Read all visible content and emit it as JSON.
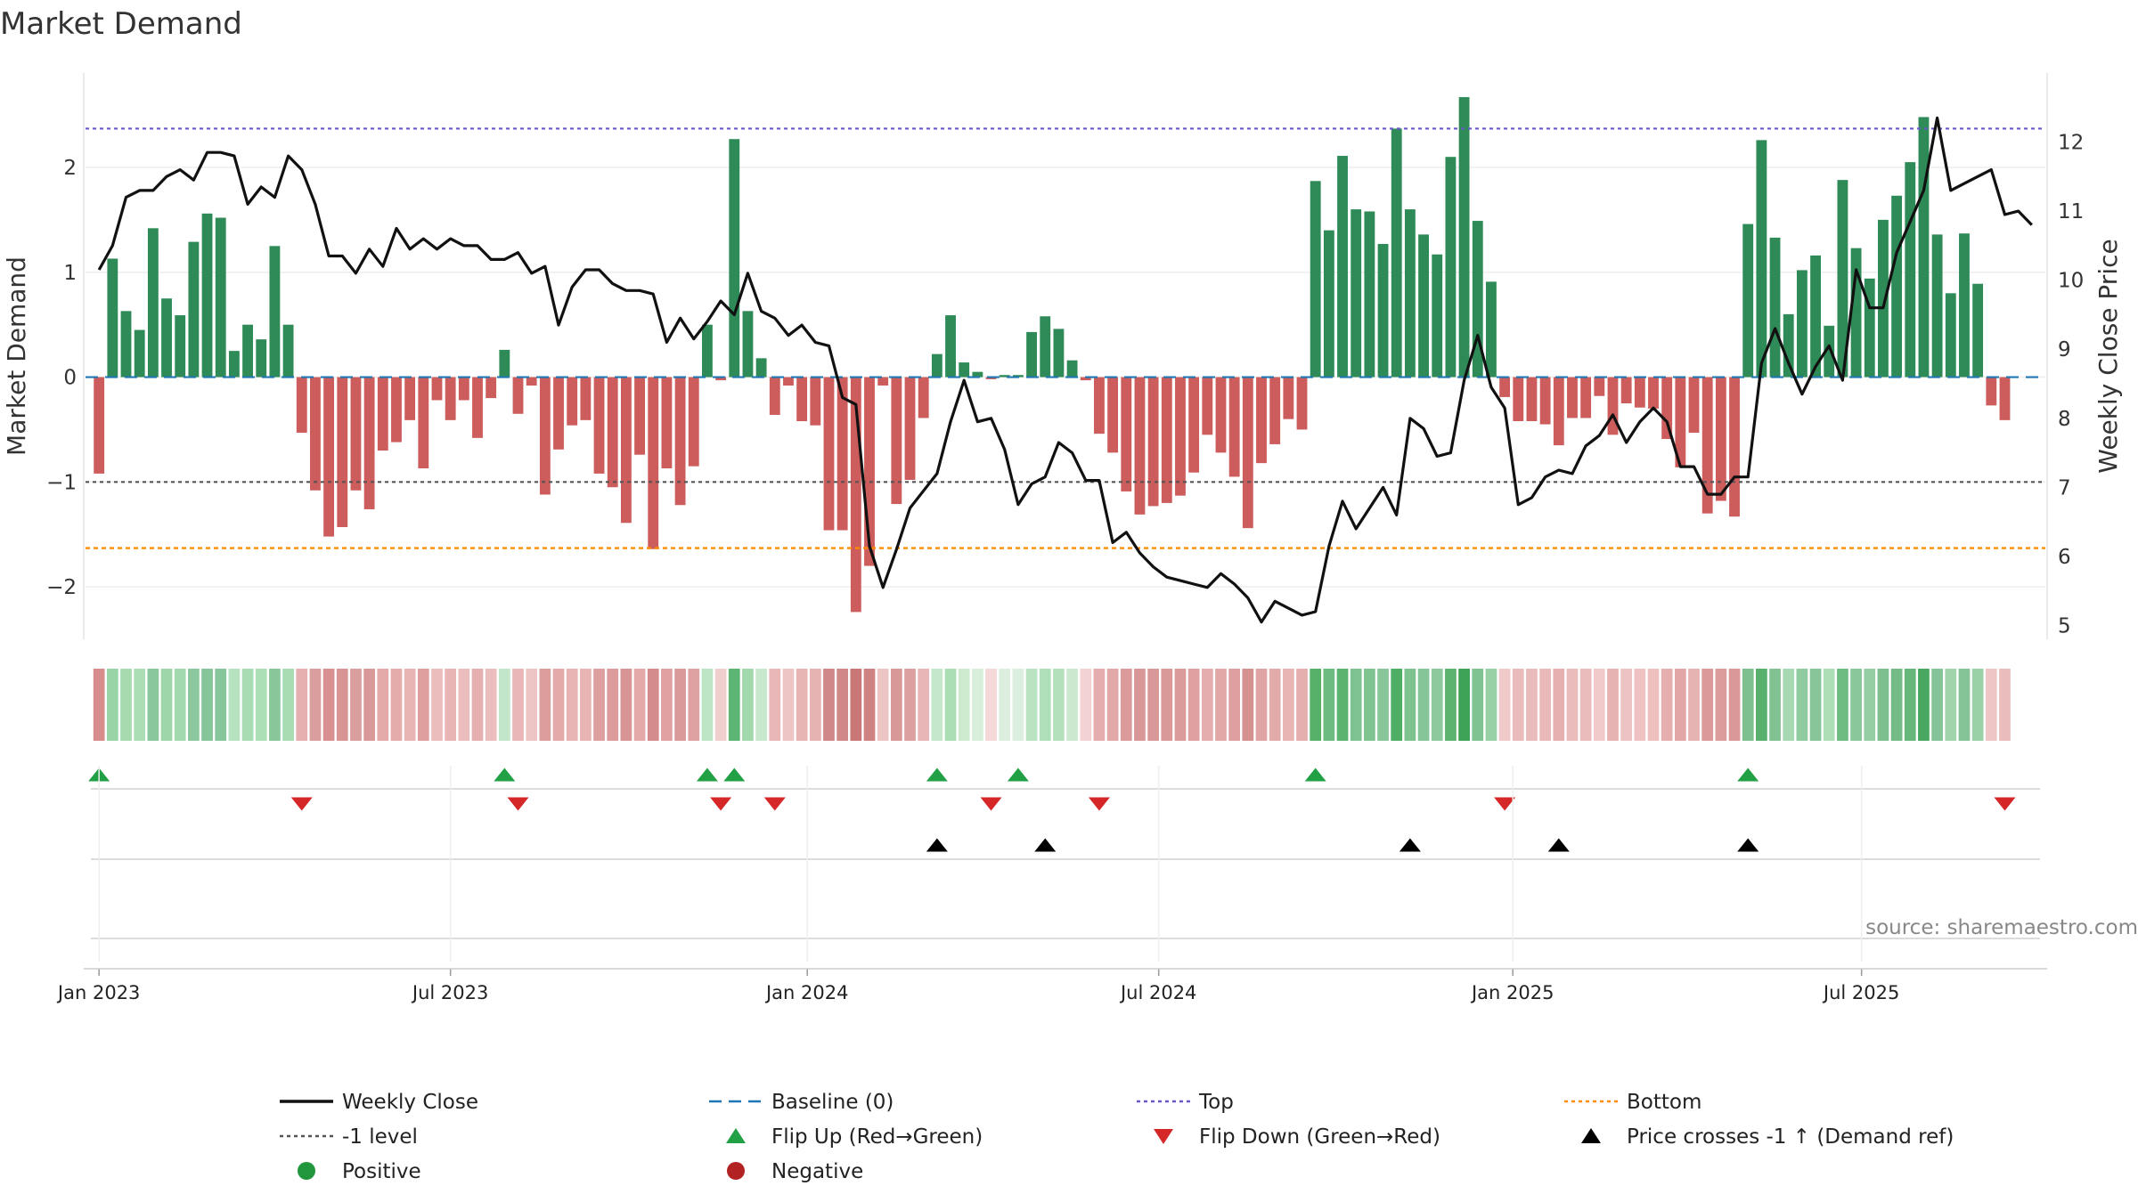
{
  "title": "Market Demand",
  "source": "source: sharemaestro.com",
  "colors": {
    "positive": "#2e8b57",
    "negative": "#cd5c5c",
    "close": "#111111",
    "baseline": "#1f77b4",
    "top": "#6a5acd",
    "minus1": "#555555",
    "bottom": "#ff8c00",
    "flip_up": "#22a045",
    "flip_down": "#d62728",
    "cross": "#000000",
    "legend_positive": "#22963c",
    "legend_negative": "#b22222"
  },
  "chart_data": {
    "type": "bar",
    "title": "Market Demand",
    "ylabel_left": "Market Demand",
    "ylabel_right": "Weekly Close Price",
    "xlim_weeks": [
      -1,
      144
    ],
    "ylim_left": [
      -2.5,
      2.9
    ],
    "ylim_right": [
      4.8,
      13.0
    ],
    "left_ticks": [
      {
        "v": 2,
        "label": "2"
      },
      {
        "v": 1,
        "label": "1"
      },
      {
        "v": 0,
        "label": "0"
      },
      {
        "v": -1,
        "label": "−1"
      },
      {
        "v": -2,
        "label": "−2"
      }
    ],
    "right_ticks": [
      {
        "v": 12,
        "label": "12"
      },
      {
        "v": 11,
        "label": "11"
      },
      {
        "v": 10,
        "label": "10"
      },
      {
        "v": 9,
        "label": "9"
      },
      {
        "v": 8,
        "label": "8"
      },
      {
        "v": 7,
        "label": "7"
      },
      {
        "v": 6,
        "label": "6"
      },
      {
        "v": 5,
        "label": "5"
      }
    ],
    "date_ticks": [
      {
        "week": 0,
        "label": "Jan 2023"
      },
      {
        "week": 26,
        "label": "Jul 2023"
      },
      {
        "week": 52.4,
        "label": "Jan 2024"
      },
      {
        "week": 78.4,
        "label": "Jul 2024"
      },
      {
        "week": 104.6,
        "label": "Jan 2025"
      },
      {
        "week": 130.4,
        "label": "Jul 2025"
      }
    ],
    "reference_lines": {
      "top": 2.37,
      "bottom": -1.63,
      "minus_one": -1,
      "baseline": 0
    },
    "demand": [
      -0.92,
      1.13,
      0.63,
      0.45,
      1.42,
      0.75,
      0.59,
      1.29,
      1.56,
      1.52,
      0.25,
      0.5,
      0.36,
      1.25,
      0.5,
      -0.53,
      -1.08,
      -1.52,
      -1.43,
      -1.08,
      -1.26,
      -0.7,
      -0.62,
      -0.41,
      -0.87,
      -0.22,
      -0.41,
      -0.22,
      -0.58,
      -0.2,
      0.26,
      -0.35,
      -0.08,
      -1.12,
      -0.69,
      -0.46,
      -0.41,
      -0.92,
      -1.05,
      -1.39,
      -0.74,
      -1.64,
      -0.87,
      -1.22,
      -0.85,
      0.5,
      -0.03,
      2.27,
      0.63,
      0.18,
      -0.36,
      -0.08,
      -0.42,
      -0.46,
      -1.46,
      -1.46,
      -2.24,
      -1.8,
      -0.08,
      -1.21,
      -0.98,
      -0.39,
      0.22,
      0.59,
      0.14,
      0.05,
      -0.02,
      0.02,
      0.02,
      0.43,
      0.58,
      0.46,
      0.16,
      -0.03,
      -0.54,
      -0.72,
      -1.09,
      -1.31,
      -1.23,
      -1.2,
      -1.13,
      -0.91,
      -0.55,
      -0.72,
      -0.95,
      -1.44,
      -0.82,
      -0.64,
      -0.4,
      -0.5,
      1.87,
      1.4,
      2.11,
      1.6,
      1.58,
      1.27,
      2.37,
      1.6,
      1.36,
      1.17,
      2.1,
      2.67,
      1.49,
      0.91,
      -0.19,
      -0.42,
      -0.42,
      -0.45,
      -0.65,
      -0.39,
      -0.39,
      -0.18,
      -0.55,
      -0.25,
      -0.29,
      -0.3,
      -0.59,
      -0.86,
      -0.53,
      -1.3,
      -1.18,
      -1.33,
      1.46,
      2.26,
      1.33,
      0.6,
      1.02,
      1.16,
      0.49,
      1.88,
      1.23,
      0.94,
      1.5,
      1.73,
      2.05,
      2.48,
      1.36,
      0.8,
      1.37,
      0.89,
      -0.27,
      -0.41
    ],
    "close": [
      10.15,
      10.5,
      11.2,
      11.3,
      11.3,
      11.5,
      11.6,
      11.45,
      11.85,
      11.85,
      11.8,
      11.1,
      11.35,
      11.2,
      11.8,
      11.6,
      11.1,
      10.35,
      10.35,
      10.1,
      10.45,
      10.2,
      10.75,
      10.45,
      10.6,
      10.45,
      10.6,
      10.5,
      10.5,
      10.3,
      10.3,
      10.4,
      10.1,
      10.2,
      9.35,
      9.9,
      10.15,
      10.15,
      9.95,
      9.85,
      9.85,
      9.8,
      9.1,
      9.45,
      9.15,
      9.4,
      9.7,
      9.5,
      10.1,
      9.55,
      9.45,
      9.2,
      9.35,
      9.1,
      9.05,
      8.3,
      8.2,
      6.15,
      5.55,
      6.1,
      6.7,
      6.95,
      7.2,
      7.95,
      8.55,
      7.95,
      8.0,
      7.55,
      6.75,
      7.05,
      7.15,
      7.65,
      7.5,
      7.1,
      7.1,
      6.2,
      6.35,
      6.05,
      5.85,
      5.7,
      5.65,
      5.6,
      5.55,
      5.75,
      5.6,
      5.4,
      5.05,
      5.35,
      5.25,
      5.15,
      5.2,
      6.15,
      6.8,
      6.4,
      6.7,
      7.0,
      6.6,
      8.0,
      7.85,
      7.45,
      7.5,
      8.55,
      9.2,
      8.45,
      8.15,
      6.75,
      6.85,
      7.15,
      7.25,
      7.2,
      7.6,
      7.75,
      8.05,
      7.65,
      7.95,
      8.15,
      7.95,
      7.3,
      7.3,
      6.9,
      6.9,
      7.15,
      7.15,
      8.8,
      9.3,
      8.8,
      8.35,
      8.75,
      9.05,
      8.55,
      10.15,
      9.6,
      9.6,
      10.4,
      10.85,
      11.3,
      12.35,
      11.3,
      11.4,
      11.5,
      11.6,
      10.95,
      11.0,
      10.8
    ],
    "strip_shades": [
      "#d98c8c",
      "#99d4a6",
      "#a6dbb0",
      "#acdeb6",
      "#8ac79c",
      "#9ed6a9",
      "#a3d9ae",
      "#8cc89e",
      "#86c599",
      "#87c59a",
      "#b6e2bf",
      "#a8dcb2",
      "#addfb6",
      "#89c79b",
      "#a8dcb2",
      "#e6b0b0",
      "#db9e9e",
      "#d89090",
      "#d99494",
      "#db9e9e",
      "#da9999",
      "#e4aaaa",
      "#e5acac",
      "#e8b4b4",
      "#df9f9f",
      "#ebbdbd",
      "#e8b4b4",
      "#ebbdbd",
      "#e6afaf",
      "#ebbdbd",
      "#c2e6c9",
      "#e9b7b7",
      "#eec5c5",
      "#dc9d9d",
      "#e4a9a9",
      "#e8b3b3",
      "#e8b4b4",
      "#de9f9f",
      "#dd9b9b",
      "#d99595",
      "#e3a8a8",
      "#d58c8c",
      "#dfa1a1",
      "#da9a9a",
      "#dfa2a2",
      "#bee4c6",
      "#f2cfcf",
      "#5db574",
      "#a1d8ac",
      "#c8e8ce",
      "#e9b7b7",
      "#eec5c5",
      "#e8b5b5",
      "#e7b2b2",
      "#d18888",
      "#d18888",
      "#c97777",
      "#d08383",
      "#eec5c5",
      "#d99898",
      "#dda0a0",
      "#e8b6b6",
      "#c5e7cb",
      "#acdeb6",
      "#cdeacf",
      "#d8efdb",
      "#f5d8d8",
      "#dcefde",
      "#dcefde",
      "#b9e3c1",
      "#afdfb8",
      "#b4e1bc",
      "#cce9d0",
      "#f2d2d2",
      "#e5adad",
      "#e2a7a7",
      "#db9b9b",
      "#d99797",
      "#da9999",
      "#da9999",
      "#db9b9b",
      "#dea0a0",
      "#e5adad",
      "#e2a7a7",
      "#dd9f9f",
      "#d59090",
      "#e0a4a4",
      "#e3aaaa",
      "#e8b4b4",
      "#e6afaf",
      "#56b068",
      "#6dbb80",
      "#5cb36f",
      "#7dc28f",
      "#7fc390",
      "#88c69a",
      "#4fae65",
      "#7dc28f",
      "#86c598",
      "#8dc99d",
      "#5cb36f",
      "#3fa357",
      "#7fc390",
      "#98d0a6",
      "#f0c9c9",
      "#eabbbb",
      "#eabbbb",
      "#e9b9b9",
      "#e6b0b0",
      "#eabcbc",
      "#eabcbc",
      "#f0caca",
      "#e7b2b2",
      "#eec3c3",
      "#eec2c2",
      "#eec1c1",
      "#e6afaf",
      "#e2a6a6",
      "#e7b2b2",
      "#db9999",
      "#dc9c9c",
      "#da9898",
      "#7fc08f",
      "#58b06c",
      "#82c292",
      "#a6d9b1",
      "#90ca9f",
      "#88c69a",
      "#aedeb6",
      "#6fbc82",
      "#8ac79b",
      "#96cea4",
      "#7ebf8e",
      "#74bb85",
      "#67b67b",
      "#48a862",
      "#85c496",
      "#a0d4ab",
      "#85c496",
      "#9ad1a7",
      "#efc6c6",
      "#eabdbd"
    ],
    "flip_up_weeks": [
      0,
      30,
      45,
      47,
      62,
      68,
      90,
      122
    ],
    "flip_down_weeks": [
      15,
      31,
      46,
      50,
      66,
      74,
      104,
      141
    ],
    "price_cross_weeks": [
      62,
      70,
      97,
      108,
      122
    ],
    "legend": [
      {
        "label": "Weekly Close",
        "symbol": "line-solid",
        "color": "#111111"
      },
      {
        "label": "Baseline (0)",
        "symbol": "line-dash",
        "color": "#1f77b4"
      },
      {
        "label": "Top",
        "symbol": "line-dot",
        "color": "#6a5acd"
      },
      {
        "label": "Bottom",
        "symbol": "line-dot",
        "color": "#ff8c00"
      },
      {
        "label": "-1 level",
        "symbol": "line-dot",
        "color": "#555555"
      },
      {
        "label": "Flip Up (Red→Green)",
        "symbol": "tri-up",
        "color": "#22a045"
      },
      {
        "label": "Flip Down (Green→Red)",
        "symbol": "tri-down",
        "color": "#d62728"
      },
      {
        "label": "Price crosses -1 ↑ (Demand ref)",
        "symbol": "tri-up",
        "color": "#000000"
      },
      {
        "label": "Positive",
        "symbol": "circle",
        "color": "#22963c"
      },
      {
        "label": "Negative",
        "symbol": "circle",
        "color": "#b22222"
      }
    ]
  }
}
